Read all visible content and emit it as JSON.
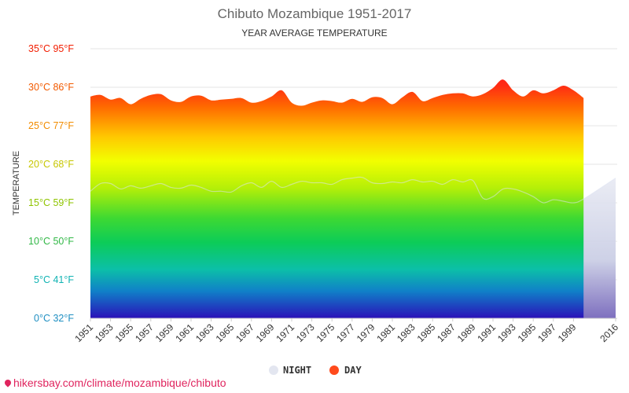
{
  "chart_data": {
    "type": "area",
    "title": "Chibuto Mozambique 1951-2017",
    "subtitle": "YEAR AVERAGE TEMPERATURE",
    "ylabel": "TEMPERATURE",
    "ylim": [
      0,
      35
    ],
    "y_ticks": [
      {
        "value": 0,
        "label": "0°C 32°F",
        "color": "#1f8fc2"
      },
      {
        "value": 5,
        "label": "5°C 41°F",
        "color": "#10b3b3"
      },
      {
        "value": 10,
        "label": "10°C 50°F",
        "color": "#32b847"
      },
      {
        "value": 15,
        "label": "15°C 59°F",
        "color": "#8fc400"
      },
      {
        "value": 20,
        "label": "20°C 68°F",
        "color": "#c7c700"
      },
      {
        "value": 25,
        "label": "25°C 77°F",
        "color": "#f28c00"
      },
      {
        "value": 30,
        "label": "30°C 86°F",
        "color": "#f25a00"
      },
      {
        "value": 35,
        "label": "35°C 95°F",
        "color": "#f21d00"
      }
    ],
    "x": [
      1951,
      1952,
      1953,
      1954,
      1955,
      1956,
      1957,
      1958,
      1959,
      1960,
      1961,
      1962,
      1963,
      1964,
      1965,
      1966,
      1967,
      1968,
      1969,
      1970,
      1971,
      1972,
      1973,
      1974,
      1975,
      1976,
      1977,
      1978,
      1979,
      1980,
      1981,
      1982,
      1983,
      1984,
      1985,
      1986,
      1987,
      1988,
      1989,
      1990,
      1991,
      1992,
      1993,
      1994,
      1995,
      1996,
      1997,
      1998,
      1999,
      2000,
      2016
    ],
    "x_tick_labels": [
      "1951",
      "1953",
      "1955",
      "1957",
      "1959",
      "1961",
      "1963",
      "1965",
      "1967",
      "1969",
      "1971",
      "1973",
      "1975",
      "1977",
      "1979",
      "1981",
      "1983",
      "1985",
      "1987",
      "1989",
      "1991",
      "1993",
      "1995",
      "1997",
      "1999",
      "2016"
    ],
    "series": [
      {
        "name": "DAY",
        "values": [
          28.8,
          29.0,
          28.4,
          28.6,
          27.8,
          28.5,
          29.0,
          29.1,
          28.3,
          28.1,
          28.8,
          28.9,
          28.3,
          28.4,
          28.5,
          28.6,
          28.0,
          28.2,
          28.8,
          29.6,
          28.0,
          27.6,
          28.0,
          28.3,
          28.2,
          28.0,
          28.5,
          28.1,
          28.7,
          28.6,
          27.8,
          28.7,
          29.4,
          28.2,
          28.6,
          29.0,
          29.2,
          29.2,
          28.8,
          29.1,
          29.9,
          31.0,
          29.6,
          28.8,
          29.6,
          29.2,
          29.6,
          30.2,
          29.6,
          28.6,
          null
        ]
      },
      {
        "name": "NIGHT",
        "values": [
          16.5,
          17.5,
          17.5,
          16.8,
          17.2,
          16.9,
          17.2,
          17.5,
          17.0,
          16.9,
          17.3,
          17.0,
          16.5,
          16.5,
          16.4,
          17.2,
          17.6,
          17.0,
          17.8,
          17.0,
          17.4,
          17.8,
          17.6,
          17.6,
          17.4,
          18.0,
          18.2,
          18.3,
          17.6,
          17.5,
          17.7,
          17.6,
          18.0,
          17.7,
          17.8,
          17.4,
          18.0,
          17.7,
          17.9,
          15.6,
          15.8,
          16.8,
          16.8,
          16.4,
          15.8,
          15.0,
          15.4,
          15.2,
          15.0,
          15.5,
          18.2
        ]
      }
    ],
    "legend": [
      {
        "name": "NIGHT",
        "color": "#e3e6f0"
      },
      {
        "name": "DAY",
        "color": "#ff4a1c"
      }
    ],
    "legend_position": "bottom-center",
    "grid": true
  },
  "footer": {
    "credit": "hikersbay.com/climate/mozambique/chibuto"
  }
}
